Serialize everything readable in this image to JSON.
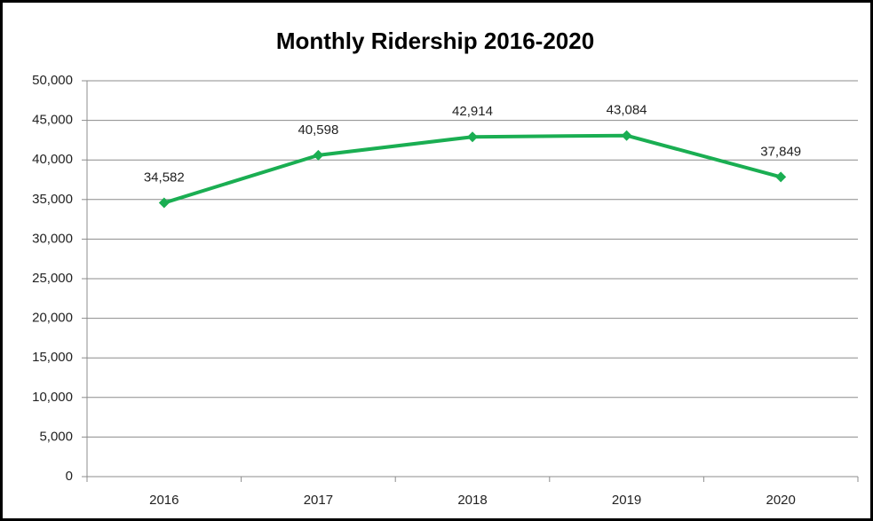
{
  "chart_data": {
    "type": "line",
    "title": "Monthly Ridership 2016-2020",
    "categories": [
      "2016",
      "2017",
      "2018",
      "2019",
      "2020"
    ],
    "values": [
      34582,
      40598,
      42914,
      43084,
      37849
    ],
    "value_labels": [
      "34,582",
      "40,598",
      "42,914",
      "43,084",
      "37,849"
    ],
    "color": "#1aae52",
    "ylim": [
      0,
      50000
    ],
    "yticks": [
      0,
      {
        "value": 5000,
        "label": "5,000"
      },
      {
        "value": 10000,
        "label": "10,000"
      },
      {
        "value": 15000,
        "label": "15,000"
      },
      {
        "value": 20000,
        "label": "20,000"
      },
      {
        "value": 25000,
        "label": "25,000"
      },
      {
        "value": 30000,
        "label": "30,000"
      },
      {
        "value": 35000,
        "label": "35,000"
      },
      {
        "value": 40000,
        "label": "40,000"
      },
      {
        "value": 45000,
        "label": "45,000"
      },
      {
        "value": 50000,
        "label": "50,000"
      }
    ],
    "grid": true
  }
}
